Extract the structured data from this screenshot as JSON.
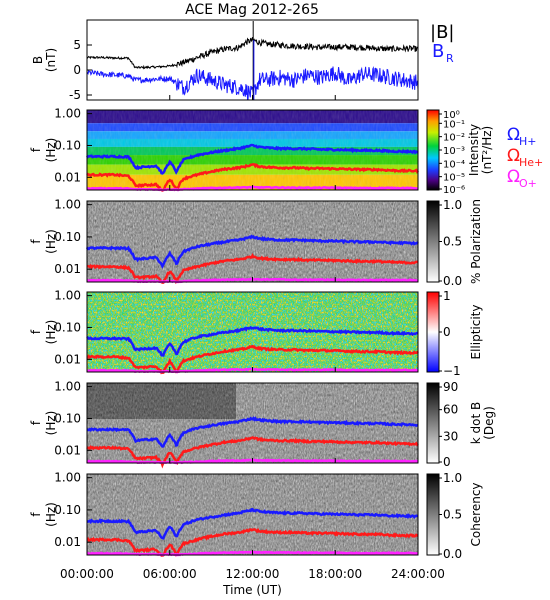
{
  "title": "ACE Mag 2012-265",
  "xlabel": "Time (UT)",
  "x_ticks": [
    "00:00:00",
    "06:00:00",
    "12:00:00",
    "18:00:00",
    "24:00:00"
  ],
  "legend_top": {
    "b_mag": "|B|",
    "b_r": "B",
    "b_r_sub": "R"
  },
  "legend_freq": [
    {
      "sym": "Ω",
      "sub": "H+",
      "color": "#1a1aff"
    },
    {
      "sym": "Ω",
      "sub": "He+",
      "color": "#ff1a1a"
    },
    {
      "sym": "Ω",
      "sub": "O+",
      "color": "#ff22ff"
    }
  ],
  "colors": {
    "bmag": "#000000",
    "br": "#1a1aff",
    "h": "#1a1aff",
    "he": "#ff1a1a",
    "o": "#ff22ff"
  },
  "chart_data": [
    {
      "type": "line",
      "ylabel": "B",
      "ylabel2": "(nT)",
      "ylim": [
        -6,
        10
      ],
      "y_ticks": [
        "5",
        "0",
        "-5"
      ],
      "y_tick_values": [
        5,
        0,
        -5
      ],
      "x_hours": [
        0,
        1,
        2,
        3,
        3.5,
        4,
        5,
        6,
        7,
        8,
        9,
        10,
        11,
        11.5,
        12,
        12.5,
        13,
        14,
        15,
        16,
        17,
        18,
        19,
        20,
        21,
        22,
        23,
        24
      ],
      "series": [
        {
          "name": "|B|",
          "values": [
            2.5,
            2.5,
            2.4,
            2.4,
            0.5,
            0.5,
            0.6,
            0.8,
            1.5,
            2.5,
            3.5,
            4.2,
            4.5,
            5.5,
            6,
            5.5,
            5.2,
            5,
            4.8,
            4.7,
            4.5,
            4.6,
            4.6,
            4.5,
            4.3,
            4.2,
            4.3,
            4.2
          ]
        },
        {
          "name": "B_R",
          "values": [
            -0.5,
            -0.8,
            -1,
            -1.2,
            -2,
            -2,
            -1.8,
            -1.7,
            -3.5,
            -1,
            -2,
            -3,
            -3.5,
            -4,
            -5,
            -2,
            -2,
            -1.5,
            -2,
            -1,
            -1.5,
            -0.5,
            -2.2,
            -0.8,
            -1,
            -1.5,
            -2,
            -2.5
          ]
        }
      ]
    },
    {
      "type": "heatmap",
      "ylabel": "f",
      "ylabel2": "(Hz)",
      "y_ticks": [
        "1.00",
        "0.10",
        "0.01"
      ],
      "colorbar_label": "Intensity",
      "colorbar_label2": "(nT²/Hz)",
      "colorbar_ticks": [
        "10⁰",
        "10⁻¹",
        "10⁻²",
        "10⁻³",
        "10⁻⁴",
        "10⁻⁵",
        "10⁻⁶"
      ],
      "colorbar_tick_values": [
        0,
        -1,
        -2,
        -3,
        -4,
        -5,
        -6
      ],
      "colorbar_range": [
        -6,
        0
      ]
    },
    {
      "type": "heatmap",
      "ylabel": "f",
      "ylabel2": "(Hz)",
      "y_ticks": [
        "1.00",
        "0.10",
        "0.01"
      ],
      "colorbar_label": "% Polarization",
      "colorbar_ticks": [
        "1.0",
        "0.5",
        "0.0"
      ],
      "colorbar_tick_values": [
        1,
        0.5,
        0
      ],
      "colorbar_range": [
        0,
        1
      ]
    },
    {
      "type": "heatmap",
      "ylabel": "f",
      "ylabel2": "(Hz)",
      "y_ticks": [
        "1.00",
        "0.10",
        "0.01"
      ],
      "colorbar_label": "Ellipticity",
      "colorbar_ticks": [
        "1",
        "0",
        "−1"
      ],
      "colorbar_tick_values": [
        1,
        0,
        -1
      ],
      "colorbar_range": [
        -1,
        1
      ]
    },
    {
      "type": "heatmap",
      "ylabel": "f",
      "ylabel2": "(Hz)",
      "y_ticks": [
        "1.00",
        "0.10",
        "0.01"
      ],
      "colorbar_label": "k dot B",
      "colorbar_label2": "(Deg)",
      "colorbar_ticks": [
        "90",
        "60",
        "30",
        "0"
      ],
      "colorbar_tick_values": [
        90,
        60,
        30,
        0
      ],
      "colorbar_range": [
        0,
        90
      ]
    },
    {
      "type": "heatmap",
      "ylabel": "f",
      "ylabel2": "(Hz)",
      "y_ticks": [
        "1.00",
        "0.10",
        "0.01"
      ],
      "colorbar_label": "Coherency",
      "colorbar_ticks": [
        "1.0",
        "0.5",
        "0.0"
      ],
      "colorbar_tick_values": [
        1,
        0.5,
        0
      ],
      "colorbar_range": [
        0,
        1
      ]
    }
  ],
  "freq_axis": {
    "scale": "log",
    "range_hz": [
      0.004,
      1.3
    ],
    "tick_values_hz": [
      1,
      0.1,
      0.01
    ]
  },
  "gyro_lines": {
    "x_hours": [
      0,
      1,
      2,
      3,
      3.5,
      4,
      5,
      5.5,
      6,
      6.5,
      7,
      8,
      9,
      10,
      11,
      11.5,
      12,
      12.5,
      13,
      14,
      15,
      16,
      17,
      18,
      19,
      20,
      21,
      22,
      23,
      24
    ],
    "h_plus_hz": [
      0.045,
      0.045,
      0.045,
      0.044,
      0.02,
      0.021,
      0.023,
      0.012,
      0.03,
      0.014,
      0.035,
      0.05,
      0.06,
      0.07,
      0.08,
      0.09,
      0.1,
      0.09,
      0.085,
      0.08,
      0.08,
      0.078,
      0.075,
      0.074,
      0.072,
      0.07,
      0.07,
      0.066,
      0.065,
      0.063
    ],
    "he_plus_hz": [
      0.012,
      0.012,
      0.012,
      0.011,
      0.0055,
      0.0056,
      0.006,
      0.0035,
      0.0085,
      0.004,
      0.009,
      0.012,
      0.015,
      0.018,
      0.02,
      0.022,
      0.025,
      0.022,
      0.021,
      0.02,
      0.02,
      0.019,
      0.019,
      0.0185,
      0.018,
      0.0175,
      0.0175,
      0.0165,
      0.016,
      0.016
    ],
    "o_plus_hz": [
      0.0045,
      0.0045,
      0.0045,
      0.0044,
      0.0042,
      0.0042,
      0.0042,
      0.0041,
      0.0042,
      0.0041,
      0.0042,
      0.0044,
      0.0046,
      0.0047,
      0.0048,
      0.0048,
      0.0049,
      0.0048,
      0.0048,
      0.0048,
      0.0047,
      0.0047,
      0.0047,
      0.0047,
      0.0046,
      0.0046,
      0.0046,
      0.0046,
      0.0046,
      0.0045
    ]
  }
}
